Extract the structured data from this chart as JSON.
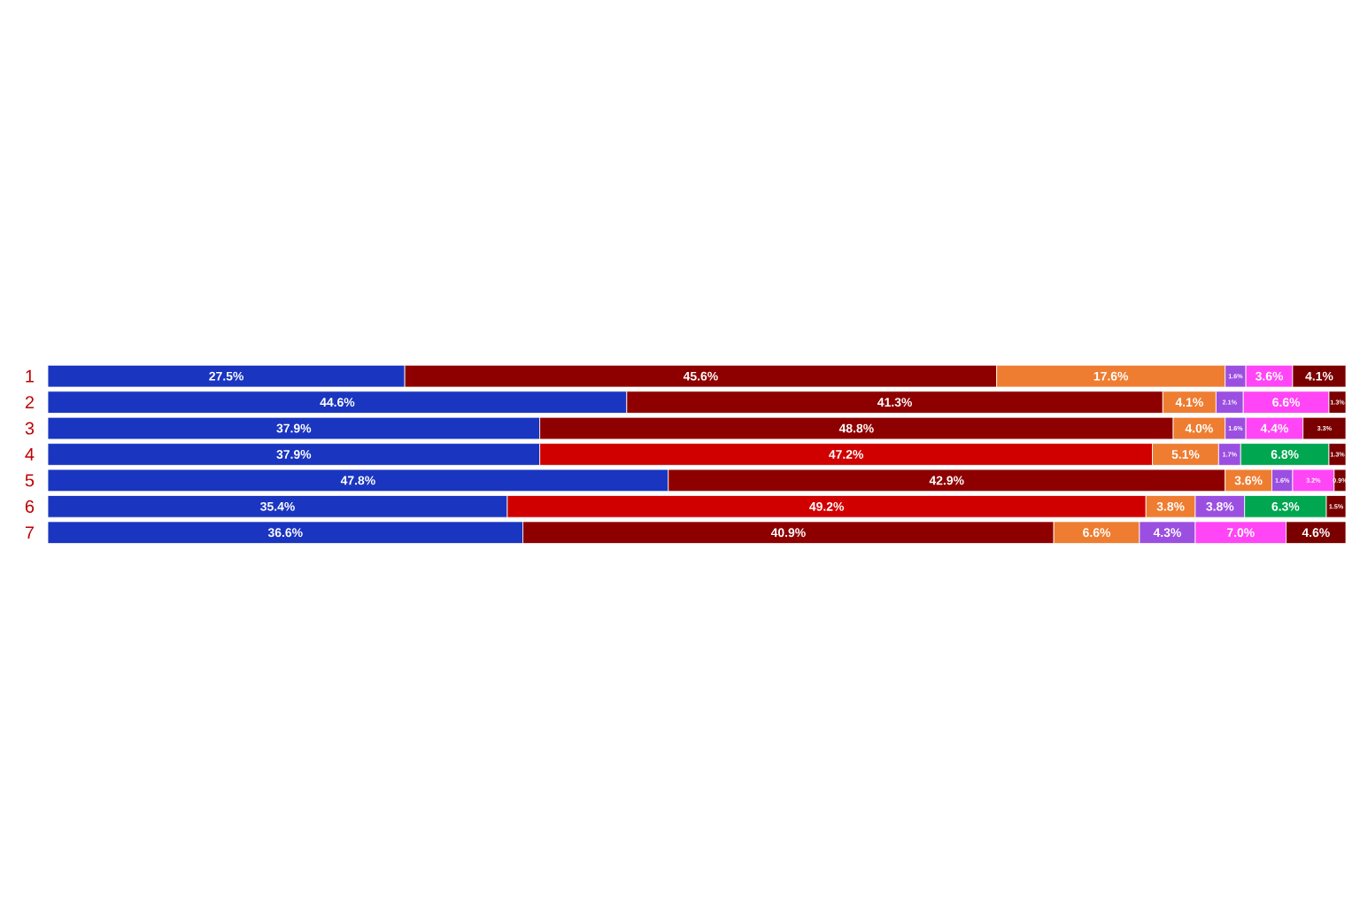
{
  "chart_data": {
    "type": "bar",
    "orientation": "horizontal",
    "stacked": true,
    "tick_labels": "y",
    "categories": [
      "1",
      "2",
      "3",
      "4",
      "5",
      "6",
      "7"
    ],
    "series": [
      {
        "color": "#1a35c0",
        "values": [
          27.5,
          44.6,
          37.9,
          37.9,
          47.8,
          35.4,
          36.6
        ],
        "value_labels": [
          "27.5%",
          "44.6%",
          "37.9%",
          "37.9%",
          "47.8%",
          "35.4%",
          "36.6%"
        ]
      },
      {
        "colors": [
          "#8e0000",
          "#8e0000",
          "#8e0000",
          "#d00000",
          "#8e0000",
          "#d00000",
          "#8e0000"
        ],
        "values": [
          45.6,
          41.3,
          48.8,
          47.2,
          42.9,
          49.2,
          40.9
        ],
        "value_labels": [
          "45.6%",
          "41.3%",
          "48.8%",
          "47.2%",
          "42.9%",
          "49.2%",
          "40.9%"
        ]
      },
      {
        "color": "#ee7d31",
        "values": [
          17.6,
          4.1,
          4.0,
          5.1,
          3.6,
          3.8,
          6.6
        ],
        "value_labels": [
          "17.6%",
          "4.1%",
          "4.0%",
          "5.1%",
          "3.6%",
          "3.8%",
          "6.6%"
        ]
      },
      {
        "color": "#9b4fe0",
        "values": [
          1.6,
          2.1,
          1.6,
          1.7,
          1.6,
          3.8,
          4.3
        ],
        "value_labels": [
          "1.6%",
          "2.1%",
          "1.6%",
          "1.7%",
          "1.6%",
          "3.8%",
          "4.3%"
        ]
      },
      {
        "colors": [
          "#ff45f5",
          "#ff45f5",
          "#ff45f5",
          "#00a650",
          "#ff45f5",
          "#00a650",
          "#ff45f5"
        ],
        "values": [
          3.6,
          6.6,
          4.4,
          6.8,
          3.2,
          6.3,
          7.0
        ],
        "value_labels": [
          "3.6%",
          "6.6%",
          "4.4%",
          "6.8%",
          "3.2%",
          "6.3%",
          "7.0%"
        ]
      },
      {
        "color": "#7a0000",
        "values": [
          4.1,
          1.3,
          3.3,
          1.3,
          0.9,
          1.5,
          4.6
        ],
        "value_labels": [
          "4.1%",
          "1.3%",
          "3.3%",
          "1.3%",
          "0.9%",
          "1.5%",
          "4.6%"
        ]
      }
    ]
  }
}
